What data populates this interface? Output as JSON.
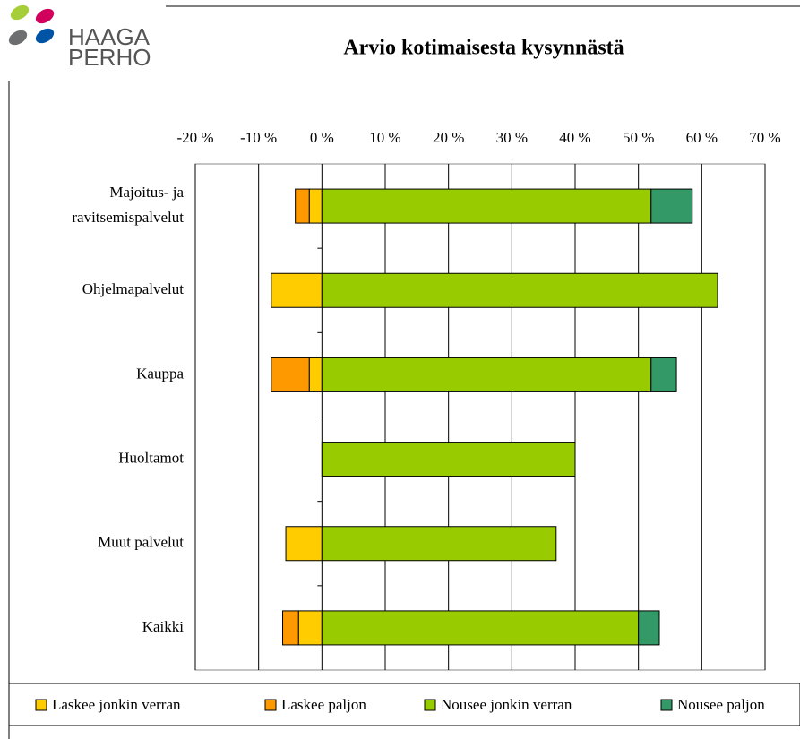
{
  "logo": [
    "HAAGA",
    "PERHO"
  ],
  "chart_data": {
    "type": "stacked-barh",
    "title": "Arvio kotimaisesta kysynnästä",
    "categories": [
      "Majoitus- ja ravitsemispalvelut",
      "Ohjelmapalvelut",
      "Kauppa",
      "Huoltamot",
      "Muut palvelut",
      "Kaikki"
    ],
    "series": [
      {
        "name": "Laskee jonkin verran",
        "color": "#ffcc00",
        "values": [
          -2,
          -8,
          -2,
          0,
          -5.7,
          -3.7
        ]
      },
      {
        "name": "Laskee paljon",
        "color": "#ff9900",
        "values": [
          -2.2,
          0,
          -6,
          0,
          0,
          -2.5
        ]
      },
      {
        "name": "Nousee jonkin verran",
        "color": "#99cc00",
        "values": [
          52,
          62.5,
          52,
          40,
          37,
          50
        ]
      },
      {
        "name": "Nousee paljon",
        "color": "#339966",
        "values": [
          6.5,
          0,
          4,
          0,
          0,
          3.3
        ]
      }
    ],
    "xlim": [
      -20,
      70
    ],
    "xticks": [
      {
        "value": -20,
        "label": "-20 %"
      },
      {
        "value": -10,
        "label": "-10 %"
      },
      {
        "value": 0,
        "label": "0 %"
      },
      {
        "value": 10,
        "label": "10 %"
      },
      {
        "value": 20,
        "label": "20 %"
      },
      {
        "value": 30,
        "label": "30 %"
      },
      {
        "value": 40,
        "label": "40 %"
      },
      {
        "value": 50,
        "label": "50 %"
      },
      {
        "value": 60,
        "label": "60 %"
      },
      {
        "value": 70,
        "label": "70 %"
      }
    ],
    "grid": true,
    "legend": "bottom"
  }
}
